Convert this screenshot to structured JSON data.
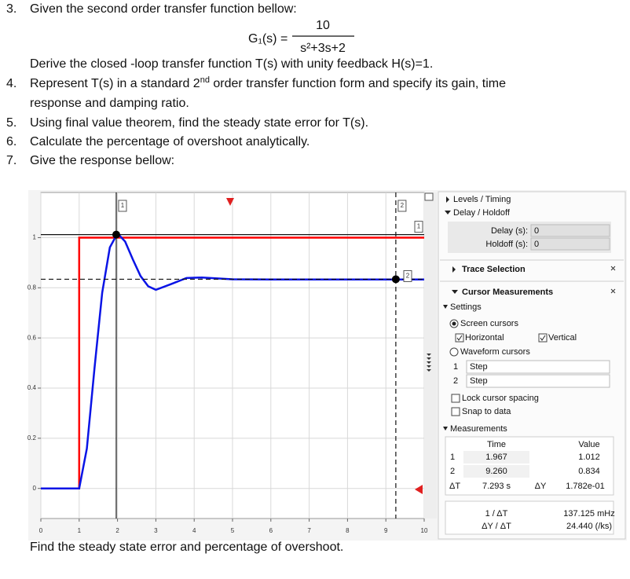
{
  "questions": [
    {
      "number": "3.",
      "text": "Given the second order transfer function bellow:"
    },
    {
      "number": "4.",
      "text": "Represent T(s) in a standard 2",
      "superscript": "nd",
      "text_after": " order transfer function form and specify its gain, time",
      "continuation": "response and damping ratio."
    },
    {
      "number": "5.",
      "text": "Using final value theorem, find the steady state error for T(s)."
    },
    {
      "number": "6.",
      "text": "Calculate the percentage of overshoot analytically."
    },
    {
      "number": "7.",
      "text": "Give the response bellow:"
    }
  ],
  "equation": {
    "lhs": "G₁(s) =",
    "numerator": "10",
    "denominator": "s²+3s+2"
  },
  "derive": "Derive the closed -loop transfer function T(s) with unity feedback H(s)=1.",
  "plot": {
    "xlim": [
      0,
      10
    ],
    "ylim": [
      -0.12,
      1.18
    ],
    "xticks": [
      0,
      1,
      2,
      3,
      4,
      5,
      6,
      7,
      8,
      9,
      10
    ],
    "yticks": [
      0,
      0.2,
      0.4,
      0.6,
      0.8,
      1
    ],
    "grid": true,
    "series": [
      {
        "color": "#ff0000",
        "x": [
          0,
          1,
          1,
          10
        ],
        "y": [
          0,
          0,
          1,
          1
        ]
      },
      {
        "color": "#0a14e6",
        "x": [
          0,
          1,
          1.2,
          1.4,
          1.6,
          1.8,
          2,
          2.2,
          2.4,
          2.6,
          2.8,
          3,
          3.4,
          3.8,
          4.2,
          5,
          6,
          7,
          8,
          9,
          10
        ],
        "y": [
          0,
          0,
          0.159,
          0.48,
          0.78,
          0.961,
          1.017,
          0.984,
          0.913,
          0.847,
          0.806,
          0.792,
          0.815,
          0.839,
          0.841,
          0.834,
          0.833,
          0.833,
          0.833,
          0.833,
          0.833
        ]
      }
    ],
    "cursors": [
      {
        "label": "1",
        "x": 1.967,
        "y": 1.012
      },
      {
        "label": "2",
        "x": 9.26,
        "y": 0.834
      }
    ]
  },
  "panel": {
    "levels": "Levels / Timing",
    "delay_holdoff": "Delay / Holdoff",
    "delay_label": "Delay (s):",
    "delay_value": "0",
    "holdoff_label": "Holdoff (s):",
    "holdoff_value": "0",
    "trace_selection": "Trace Selection",
    "cursor_measurements": "Cursor Measurements",
    "settings": "Settings",
    "screen_cursors": "Screen cursors",
    "horizontal": "Horizontal",
    "vertical": "Vertical",
    "waveform_cursors": "Waveform cursors",
    "waveform_rows": [
      [
        "1",
        "Step"
      ],
      [
        "2",
        "Step"
      ]
    ],
    "lock_spacing": "Lock cursor spacing",
    "snap": "Snap to data",
    "measurements": "Measurements",
    "table_header": [
      "Time",
      "Value"
    ],
    "table_rows": [
      [
        "1",
        "1.967",
        "1.012"
      ],
      [
        "2",
        "9.260",
        "0.834"
      ]
    ],
    "delta_row": [
      "ΔT",
      "7.293 s",
      "ΔY",
      "1.782e-01"
    ],
    "extra_rows": [
      [
        "1 / ΔT",
        "137.125 mHz"
      ],
      [
        "ΔY / ΔT",
        "24.440 (/ks)"
      ]
    ]
  },
  "footer": "Find the steady state error and percentage of overshoot."
}
